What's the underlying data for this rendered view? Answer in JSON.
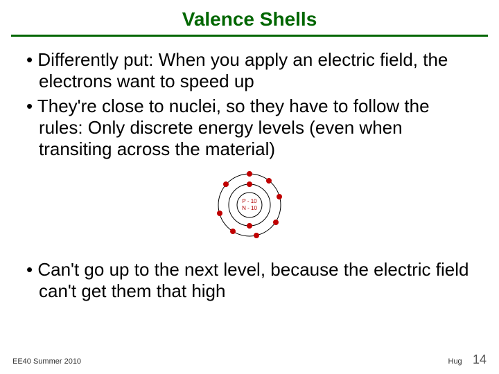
{
  "title": "Valence Shells",
  "title_color": "#006600",
  "rule_color": "#006600",
  "text_color": "#000000",
  "bullets": [
    "Differently put: When you apply an electric field, the electrons want to speed up",
    "They're close to nuclei, so they have to follow the rules: Only discrete energy levels (even when transiting across the material)",
    "Can't go up to the next level, because the electric field can't get them that high"
  ],
  "atom": {
    "nucleus_lines": [
      "P - 10",
      "N - 10"
    ],
    "nucleus_text_color": "#b00000",
    "shell_color": "#000000",
    "electron_color": "#c00000",
    "nucleus_radius": 18,
    "shell_radii": [
      30,
      45
    ],
    "electron_radius": 4,
    "shell1_electrons": [
      [
        0,
        -30
      ],
      [
        0,
        30
      ]
    ],
    "shell2_electrons": [
      [
        0,
        -45
      ],
      [
        28,
        -35
      ],
      [
        43,
        -12
      ],
      [
        38,
        25
      ],
      [
        10,
        44
      ],
      [
        -24,
        38
      ],
      [
        -43,
        12
      ],
      [
        -34,
        -30
      ]
    ]
  },
  "footer": {
    "left": "EE40 Summer 2010",
    "right": "Hug",
    "page": "14"
  }
}
